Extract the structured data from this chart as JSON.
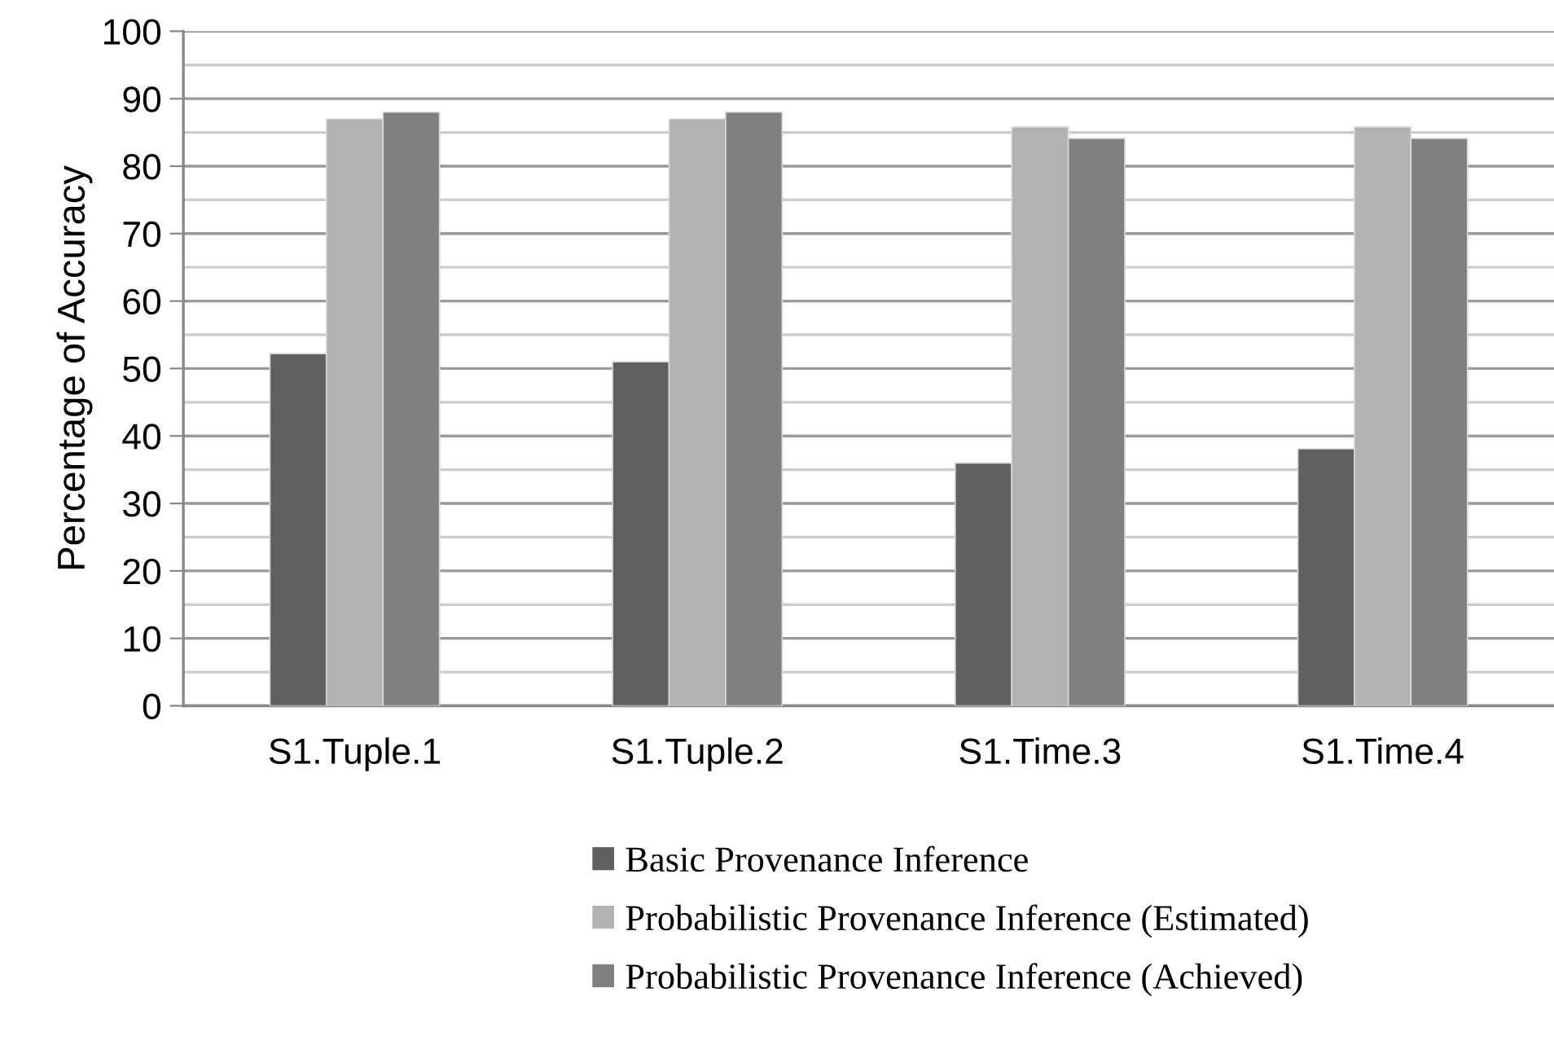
{
  "chart_data": {
    "type": "bar",
    "ylabel": "Percentage of Accuracy",
    "categories": [
      "S1.Tuple.1",
      "S1.Tuple.2",
      "S1.Time.3",
      "S1.Time.4"
    ],
    "series": [
      {
        "name": "Basic Provenance Inference",
        "color": "#606060",
        "values": [
          52.2,
          51.0,
          36.0,
          38.1
        ]
      },
      {
        "name": "Probabilistic Provenance Inference (Estimated)",
        "color": "#b2b2b2",
        "values": [
          87.0,
          87.0,
          85.8,
          85.8
        ]
      },
      {
        "name": "Probabilistic Provenance Inference (Achieved)",
        "color": "#808080",
        "values": [
          88.0,
          88.0,
          84.1,
          84.1
        ]
      }
    ],
    "ylim": [
      0,
      100
    ],
    "yticks": [
      0,
      {
        "value": 5,
        "label": null
      },
      10,
      {
        "value": 15,
        "label": null
      },
      20,
      {
        "value": 25,
        "label": null
      },
      30,
      {
        "value": 35,
        "label": null
      },
      40,
      {
        "value": 45,
        "label": null
      },
      50,
      {
        "value": 55,
        "label": null
      },
      60,
      {
        "value": 65,
        "label": null
      },
      70,
      {
        "value": 75,
        "label": null
      },
      80,
      {
        "value": 85,
        "label": null
      },
      90,
      {
        "value": 95,
        "label": null
      },
      100
    ],
    "grid": "y",
    "legend": "bottom"
  }
}
